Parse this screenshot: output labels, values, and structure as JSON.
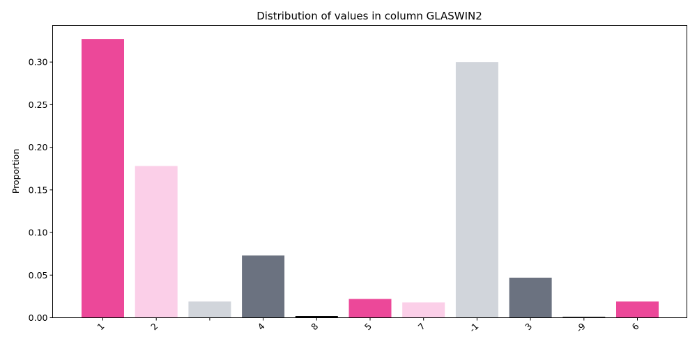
{
  "chart_data": {
    "type": "bar",
    "title": "Distribution of values in column GLASWIN2",
    "xlabel": "",
    "ylabel": "Proportion",
    "ylim": [
      0,
      0.343
    ],
    "yticks": [
      "0.00",
      "0.05",
      "0.10",
      "0.15",
      "0.20",
      "0.25",
      "0.30"
    ],
    "grid": false,
    "categories": [
      "1",
      "2",
      "",
      "4",
      "8",
      "5",
      "7",
      "-1",
      "3",
      "-9",
      "6"
    ],
    "values": [
      0.327,
      0.178,
      0.019,
      0.073,
      0.002,
      0.022,
      0.018,
      0.3,
      0.047,
      0.001,
      0.019
    ],
    "colors": [
      "#ec4899",
      "#fbcfe8",
      "#d1d5db",
      "#6b7280",
      "#000000",
      "#ec4899",
      "#fbcfe8",
      "#d1d5db",
      "#6b7280",
      "#000000",
      "#ec4899"
    ]
  }
}
